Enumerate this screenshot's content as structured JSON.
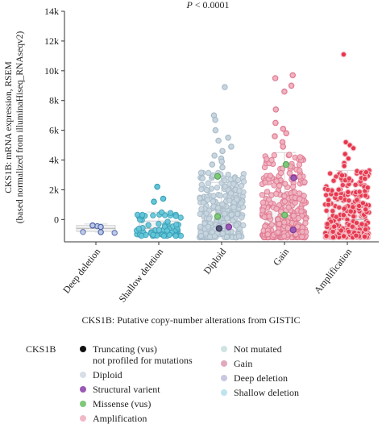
{
  "chart_data": {
    "type": "scatter",
    "annotation": "P < 0.0001",
    "ylabel_line1": "CKS1B: mRNA expression, RSEM",
    "ylabel_line2": "(based normalized from illuminaHiseq_RNAseqv2)",
    "xlabel": "CKS1B: Putative copy-number alterations from GISTIC",
    "ylim": [
      -1500,
      14000
    ],
    "yticks": [
      {
        "value": 0,
        "label": "0"
      },
      {
        "value": 2000,
        "label": "2k"
      },
      {
        "value": 4000,
        "label": "4k"
      },
      {
        "value": 6000,
        "label": "6k"
      },
      {
        "value": 8000,
        "label": "8k"
      },
      {
        "value": 10000,
        "label": "10k"
      },
      {
        "value": 12000,
        "label": "12k"
      },
      {
        "value": 14000,
        "label": "14k"
      }
    ],
    "grid": false,
    "categories": [
      "Deep deletion",
      "Shallow deletion",
      "Diploid",
      "Gain",
      "Amplification"
    ],
    "groups": [
      {
        "category": "Deep deletion",
        "color": "#b8c9e6",
        "edge": "#5060a8",
        "n": 3,
        "median": -600,
        "q1": -800,
        "q3": -400,
        "min": -900,
        "max": -300,
        "spread_max": 0,
        "outliers": [
          -400,
          -500,
          -850
        ]
      },
      {
        "category": "Shallow deletion",
        "color": "#63c7d9",
        "edge": "#3aa0b8",
        "n": 70,
        "median": -600,
        "q1": -900,
        "q3": -100,
        "min": -1100,
        "max": 500,
        "spread_max": 600,
        "outliers": [
          2200,
          1200,
          1400
        ]
      },
      {
        "category": "Diploid",
        "color": "#c8d6e0",
        "edge": "#a9bcc9",
        "n": 260,
        "median": -200,
        "q1": -800,
        "q3": 600,
        "min": -1200,
        "max": 2500,
        "spread_max": 3200,
        "outliers": [
          8900,
          7000,
          6700,
          6000,
          5500,
          5300,
          4900,
          4600,
          4300,
          4100,
          3900,
          3700,
          3500
        ]
      },
      {
        "category": "Gain",
        "color": "#f0b3c0",
        "edge": "#e07a92",
        "n": 300,
        "median": -300,
        "q1": -900,
        "q3": 1800,
        "min": -1200,
        "max": 4500,
        "spread_max": 4500,
        "outliers": [
          9700,
          9500,
          9000,
          8600,
          7400,
          6500,
          6100,
          5800,
          5600,
          5200,
          4900
        ]
      },
      {
        "category": "Amplification",
        "color": "#e8334a",
        "edge": "#f4c5cd",
        "n": 320,
        "median": 0,
        "q1": -800,
        "q3": 1200,
        "min": -1200,
        "max": 3300,
        "spread_max": 3300,
        "outliers": [
          11100,
          5200,
          5000,
          4800,
          4400,
          4100,
          3800,
          3600
        ]
      }
    ],
    "legend": {
      "title": "CKS1B",
      "items": [
        {
          "label": "Truncating (vus)\nnot profiled for mutations",
          "color": "#111111"
        },
        {
          "label": "Diploid",
          "color": "#d8dee6"
        },
        {
          "label": "Structural varient",
          "color": "#9b59b6"
        },
        {
          "label": "Missense (vus)",
          "color": "#7ec87a"
        },
        {
          "label": "Amplification",
          "color": "#f3b8c8"
        },
        {
          "label": "Not mutated",
          "color": "#cfe3e3"
        },
        {
          "label": "Gain",
          "color": "#e2a9bd"
        },
        {
          "label": "Deep deletion",
          "color": "#c7c7e3"
        },
        {
          "label": "Shallow deletion",
          "color": "#bfe3ef"
        }
      ]
    }
  }
}
